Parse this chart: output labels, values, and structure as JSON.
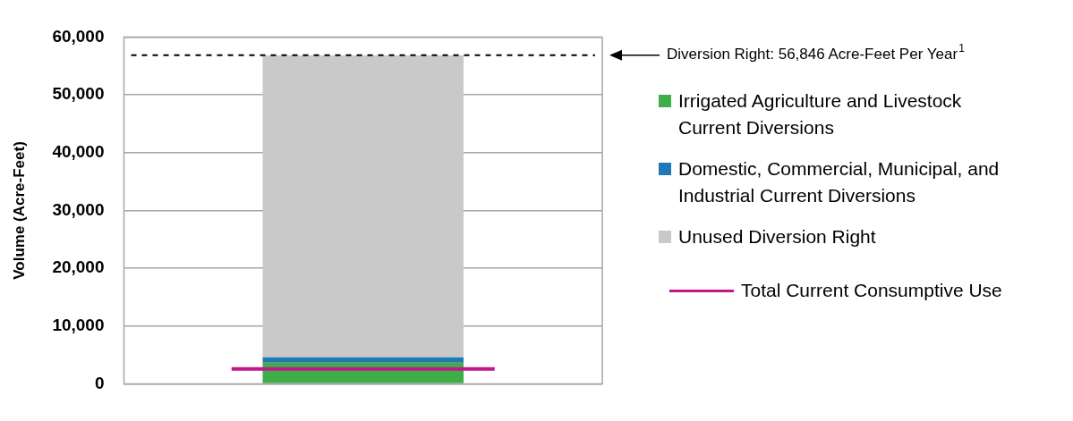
{
  "chart_data": {
    "type": "bar",
    "stacked": true,
    "ylabel": "Volume (Acre-Feet)",
    "categories": [
      null
    ],
    "series": [
      {
        "name": "Irrigated Agriculture and Livestock Current Diversions",
        "color": "#3fae49",
        "values": [
          3700
        ]
      },
      {
        "name": "Domestic, Commercial, Municipal, and Industrial Current Diversions",
        "color": "#2178b4",
        "values": [
          900
        ]
      },
      {
        "name": "Unused Diversion Right",
        "color": "#c9c9c9",
        "values": [
          52200
        ]
      }
    ],
    "ylim": [
      0,
      60000
    ],
    "yticks": [
      0,
      {
        "value": 10000,
        "label": "10,000"
      },
      {
        "value": 20000,
        "label": "20,000"
      },
      {
        "value": 30000,
        "label": "30,000"
      },
      {
        "value": 40000,
        "label": "40,000"
      },
      {
        "value": 50000,
        "label": "50,000"
      },
      {
        "value": 60000,
        "label": "60,000"
      }
    ],
    "grid": "y",
    "legend": "right",
    "ref_lines": [
      {
        "axis": "y",
        "value": 56846,
        "color": "#000000",
        "line_style": "dashed"
      },
      {
        "axis": "y",
        "value": 2600,
        "label": "Total Current Consumptive Use",
        "color": "#c0188c",
        "line_style": "solid"
      }
    ],
    "annotations": [
      "Diversion Right: 56,846 Acre-Feet Per Year$^{1}$"
    ]
  }
}
